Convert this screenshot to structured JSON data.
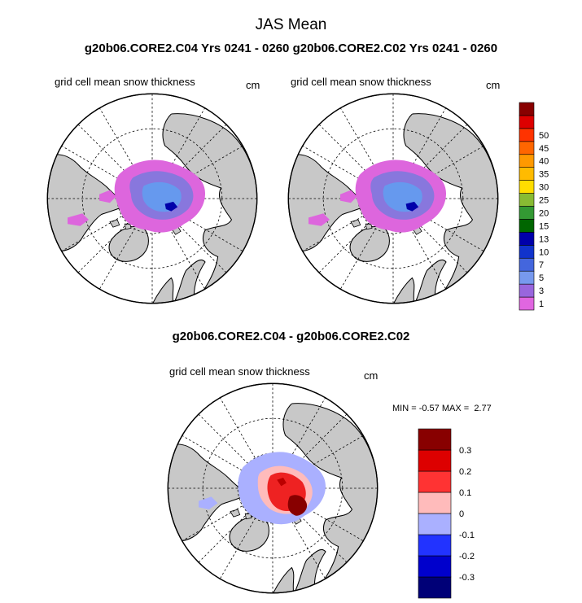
{
  "title": "JAS Mean",
  "subtitle": "g20b06.CORE2.C04  Yrs 0241 - 0260 g20b06.CORE2.C02  Yrs 0241 - 0260",
  "diff_title": "g20b06.CORE2.C04 - g20b06.CORE2.C02",
  "panels": [
    {
      "label": "grid cell mean snow thickness",
      "units": "cm"
    },
    {
      "label": "grid cell mean snow thickness",
      "units": "cm"
    },
    {
      "label": "grid cell mean snow thickness",
      "units": "cm"
    }
  ],
  "diff_stats": {
    "min_label": "MIN =",
    "min": "-0.57",
    "max_label": "MAX =",
    "max": "2.77"
  },
  "legend_main": {
    "colors": [
      "#e066e0",
      "#9966dd",
      "#7799ee",
      "#4466dd",
      "#1133cc",
      "#0000aa",
      "#006600",
      "#339933",
      "#88bb33",
      "#ffdd00",
      "#ffbb00",
      "#ff9900",
      "#ff6600",
      "#ff3300",
      "#dd0000",
      "#880000"
    ],
    "ticks": [
      "1",
      "3",
      "5",
      "7",
      "10",
      "13",
      "15",
      "20",
      "25",
      "30",
      "35",
      "40",
      "45",
      "50"
    ]
  },
  "legend_diff": {
    "colors": [
      "#000077",
      "#0000cc",
      "#2233ff",
      "#aab0ff",
      "#ffbbbb",
      "#ff3333",
      "#dd0000",
      "#880000"
    ],
    "ticks": [
      "-0.3",
      "-0.2",
      "-0.1",
      "0",
      "0.1",
      "0.2",
      "0.3"
    ]
  },
  "map_colors": {
    "land": "#c8c8c8",
    "ocean": "#ffffff",
    "coast": "#000000"
  }
}
